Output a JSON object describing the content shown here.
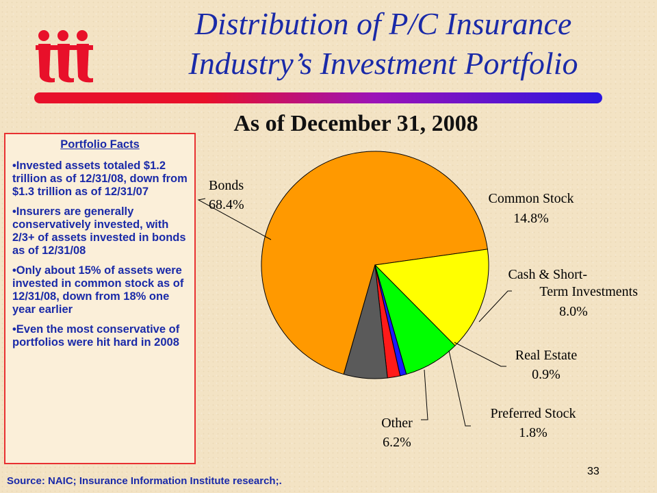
{
  "slide": {
    "title_line1": "Distribution  of P/C Insurance",
    "title_line2": "Industry’s Investment Portfolio",
    "subtitle": "As of December  31, 2008",
    "source": "Source:  NAIC;  Insurance Information Institute research;.",
    "page_number": "33",
    "logo_text": "iii"
  },
  "facts": {
    "title": "Portfolio Facts",
    "items": [
      "•Invested assets totaled $1.2 trillion as of 12/31/08, down from $1.3 trillion as of 12/31/07",
      "•Insurers are generally conservatively invested, with 2/3+ of assets invested in bonds as of 12/31/08",
      "•Only about 15% of assets were invested in common stock as of 12/31/08, down from 18% one year earlier",
      "•Even the most conservative of portfolios were hit hard in 2008"
    ]
  },
  "colors": {
    "title": "#1a2aa8",
    "logo": "#e8102a",
    "facts_border": "#e83030"
  },
  "chart_data": {
    "type": "pie",
    "slices": [
      {
        "label": "Bonds",
        "value": 68.4,
        "value_label": "68.4%",
        "color": "#ff9900"
      },
      {
        "label": "Common Stock",
        "value": 14.8,
        "value_label": "14.8%",
        "color": "#ffff00"
      },
      {
        "label": "Cash & Short-Term Investments",
        "value": 8.0,
        "value_label": "8.0%",
        "color": "#00ff00"
      },
      {
        "label": "Real Estate",
        "value": 0.9,
        "value_label": "0.9%",
        "color": "#1a1aff"
      },
      {
        "label": "Preferred Stock",
        "value": 1.8,
        "value_label": "1.8%",
        "color": "#ff1a1a"
      },
      {
        "label": "Other",
        "value": 6.2,
        "value_label": "6.2%",
        "color": "#5a5a5a"
      }
    ]
  }
}
